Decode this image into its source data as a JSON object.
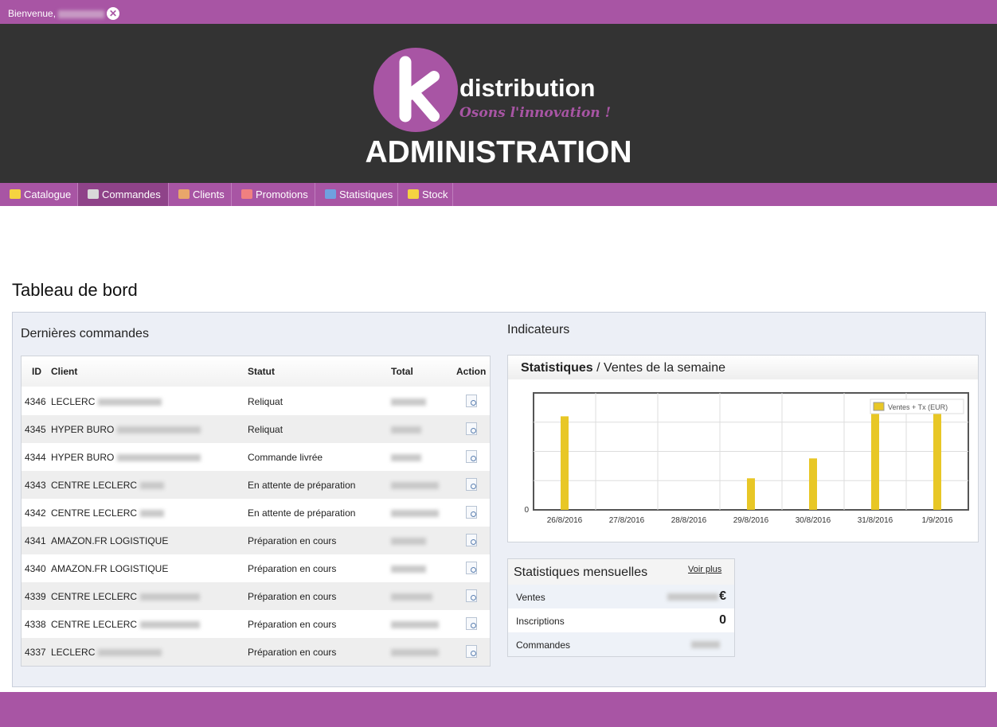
{
  "topbar": {
    "welcome": "Bienvenue,"
  },
  "header": {
    "brand": "distribution",
    "slogan": "Osons l'innovation !",
    "title": "ADMINISTRATION"
  },
  "nav": {
    "items": [
      {
        "label": "Catalogue",
        "icon": "folder-icon"
      },
      {
        "label": "Commandes",
        "icon": "cart-icon"
      },
      {
        "label": "Clients",
        "icon": "user-icon"
      },
      {
        "label": "Promotions",
        "icon": "promo-icon"
      },
      {
        "label": "Statistiques",
        "icon": "stats-icon"
      },
      {
        "label": "Stock",
        "icon": "stock-icon"
      }
    ]
  },
  "page": {
    "title": "Tableau de bord"
  },
  "orders": {
    "title": "Dernières commandes",
    "columns": {
      "id": "ID",
      "client": "Client",
      "status": "Statut",
      "total": "Total",
      "action": "Action"
    },
    "rows": [
      {
        "id": "4346",
        "client": "LECLERC",
        "status": "Reliquat"
      },
      {
        "id": "4345",
        "client": "HYPER BURO",
        "status": "Reliquat"
      },
      {
        "id": "4344",
        "client": "HYPER BURO",
        "status": "Commande livrée"
      },
      {
        "id": "4343",
        "client": "CENTRE LECLERC",
        "status": "En attente de préparation"
      },
      {
        "id": "4342",
        "client": "CENTRE LECLERC",
        "status": "En attente de préparation"
      },
      {
        "id": "4341",
        "client": "AMAZON.FR LOGISTIQUE",
        "status": "Préparation en cours"
      },
      {
        "id": "4340",
        "client": "AMAZON.FR LOGISTIQUE",
        "status": "Préparation en cours"
      },
      {
        "id": "4339",
        "client": "CENTRE LECLERC",
        "status": "Préparation en cours"
      },
      {
        "id": "4338",
        "client": "CENTRE LECLERC",
        "status": "Préparation en cours"
      },
      {
        "id": "4337",
        "client": "LECLERC",
        "status": "Préparation en cours"
      }
    ]
  },
  "indicators": {
    "title": "Indicateurs",
    "stats_title_bold": "Statistiques",
    "stats_title_rest": " / Ventes de la semaine"
  },
  "chart_data": {
    "type": "bar",
    "categories": [
      "26/8/2016",
      "27/8/2016",
      "28/8/2016",
      "29/8/2016",
      "30/8/2016",
      "31/8/2016",
      "1/9/2016"
    ],
    "series": [
      {
        "name": "Ventes + Tx (EUR)",
        "values": [
          0.8,
          0,
          0,
          0.27,
          0.44,
          0.94,
          0.82
        ]
      }
    ],
    "ylim": [
      0,
      1
    ],
    "ytick_visible": "0",
    "grid": true,
    "legend": "top-right",
    "color": "#e8c726"
  },
  "monthly": {
    "title": "Statistiques mensuelles",
    "more_label": "Voir plus",
    "rows": [
      {
        "label": "Ventes",
        "value": "€"
      },
      {
        "label": "Inscriptions",
        "value": "0"
      },
      {
        "label": "Commandes",
        "value": ""
      }
    ]
  },
  "colors": {
    "brand": "#a855a4",
    "header_bg": "#333333",
    "bar": "#e8c726"
  }
}
